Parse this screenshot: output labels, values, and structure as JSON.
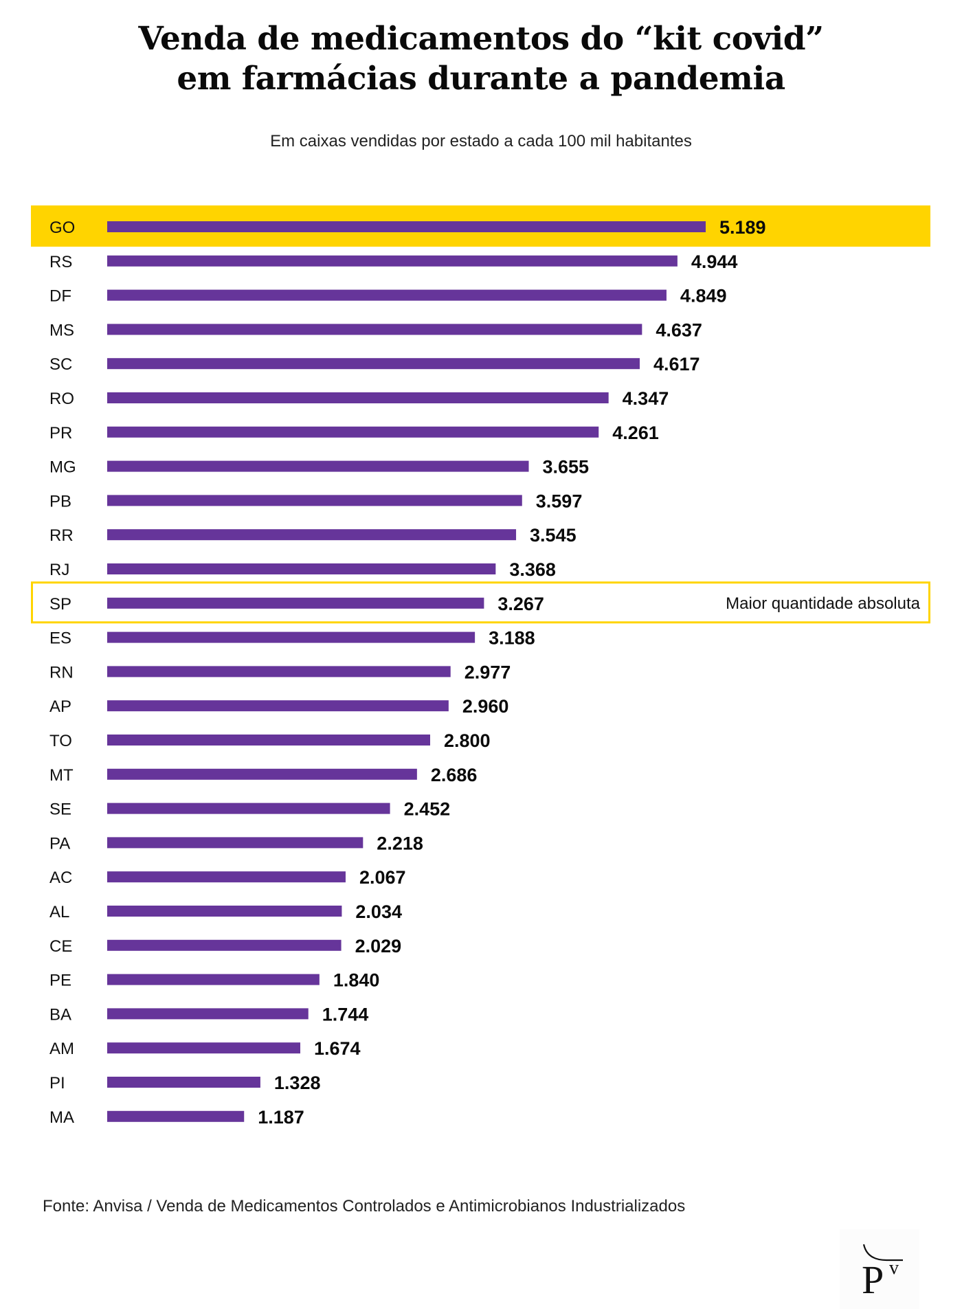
{
  "chart_data": {
    "type": "bar",
    "orientation": "horizontal",
    "title": "Venda de medicamentos do “kit covid” em farmácias durante a pandemia",
    "title_lines": [
      "Venda de medicamentos do “kit covid”",
      "em farmácias durante a pandemia"
    ],
    "subtitle": "Em caixas vendidas por estado a cada 100 mil habitantes",
    "xlabel": "",
    "ylabel": "",
    "xlim": [
      0,
      5189
    ],
    "grid": false,
    "legend": "none",
    "categories": [
      "GO",
      "RS",
      "DF",
      "MS",
      "SC",
      "RO",
      "PR",
      "MG",
      "PB",
      "RR",
      "RJ",
      "SP",
      "ES",
      "RN",
      "AP",
      "TO",
      "MT",
      "SE",
      "PA",
      "AC",
      "AL",
      "CE",
      "PE",
      "BA",
      "AM",
      "PI",
      "MA"
    ],
    "values": [
      5189,
      4944,
      4849,
      4637,
      4617,
      4347,
      4261,
      3655,
      3597,
      3545,
      3368,
      3267,
      3188,
      2977,
      2960,
      2800,
      2686,
      2452,
      2218,
      2067,
      2034,
      2029,
      1840,
      1744,
      1674,
      1328,
      1187
    ],
    "value_labels": [
      "5.189",
      "4.944",
      "4.849",
      "4.637",
      "4.617",
      "4.347",
      "4.261",
      "3.655",
      "3.597",
      "3.545",
      "3.368",
      "3.267",
      "3.188",
      "2.977",
      "2.960",
      "2.800",
      "2.686",
      "2.452",
      "2.218",
      "2.067",
      "2.034",
      "2.029",
      "1.840",
      "1.744",
      "1.674",
      "1.328",
      "1.187"
    ],
    "highlights": [
      {
        "category": "GO",
        "style": "filled"
      },
      {
        "category": "SP",
        "style": "outlined",
        "annotation": "Maior quantidade absoluta"
      }
    ],
    "colors": {
      "bar": "#66359a",
      "highlight": "#ffd400",
      "text": "#111111"
    }
  },
  "header": {
    "title_line1": "Venda de medicamentos do “kit covid”",
    "title_line2": "em farmácias durante a pandemia",
    "subtitle": "Em caixas vendidas por estado a cada 100 mil habitantes"
  },
  "footer": {
    "source": "Fonte: Anvisa / Venda de Medicamentos Controlados e Antimicrobianos Industrializados"
  },
  "logo": {
    "icon": "poder360-logo-icon",
    "letter": "P",
    "superscript": "v"
  }
}
